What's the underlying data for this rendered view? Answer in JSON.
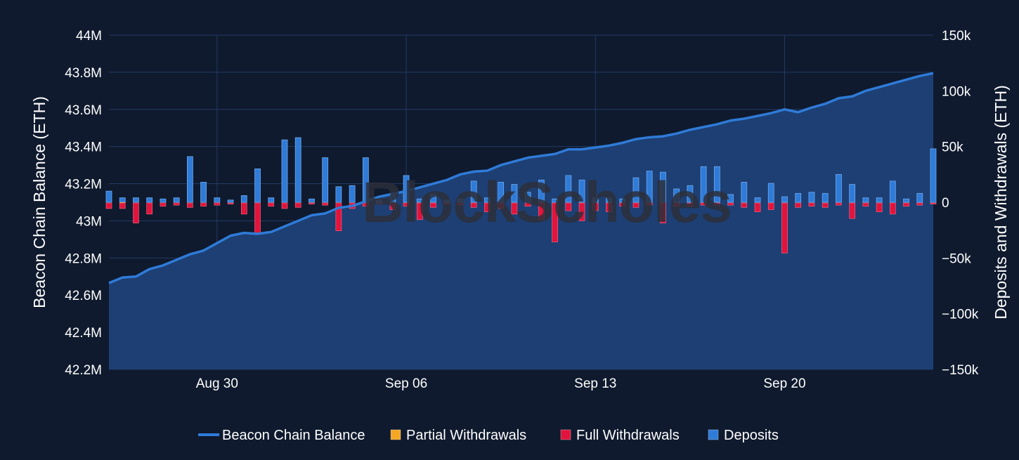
{
  "chart_data": {
    "type": "bar+area",
    "watermark": "BlockScholes",
    "x_tick_labels": [
      "Aug 30",
      "Sep 06",
      "Sep 13",
      "Sep 20"
    ],
    "x_tick_indices": [
      4,
      11,
      18,
      25
    ],
    "y_left": {
      "label": "Beacon Chain Balance (ETH)",
      "range": [
        42200000,
        44000000
      ],
      "ticks": [
        42200000,
        42400000,
        42600000,
        42800000,
        43000000,
        43200000,
        43400000,
        43600000,
        43800000,
        44000000
      ],
      "tick_labels": [
        "42.2M",
        "42.4M",
        "42.6M",
        "42.8M",
        "43M",
        "43.2M",
        "43.4M",
        "43.6M",
        "43.8M",
        "44M"
      ]
    },
    "y_right": {
      "label": "Deposits and Withdrawals (ETH)",
      "range": [
        -150000,
        150000
      ],
      "ticks": [
        -150000,
        -100000,
        -50000,
        0,
        50000,
        100000,
        150000
      ],
      "tick_labels": [
        "−150k",
        "−100k",
        "−50k",
        "0",
        "50k",
        "100k",
        "150k"
      ]
    },
    "legend": [
      {
        "name": "Beacon Chain Balance",
        "color": "#2f7bd8",
        "kind": "line"
      },
      {
        "name": "Partial Withdrawals",
        "color": "#f5a623",
        "kind": "box"
      },
      {
        "name": "Full Withdrawals",
        "color": "#e0143c",
        "kind": "box"
      },
      {
        "name": "Deposits",
        "color": "#2f7bd8",
        "kind": "box"
      }
    ],
    "colors": {
      "background": "#0f1a2e",
      "area_fill": "#1d3f73",
      "line": "#2f7bd8",
      "deposits": "#2f7bd8",
      "full_withdrawals": "#e0143c",
      "partial_withdrawals": "#f5a623",
      "grid": "#233a63"
    },
    "balance": [
      [
        0,
        42665000
      ],
      [
        0.5,
        42695000
      ],
      [
        1,
        42700000
      ],
      [
        1.5,
        42740000
      ],
      [
        2,
        42760000
      ],
      [
        2.5,
        42790000
      ],
      [
        3,
        42820000
      ],
      [
        3.5,
        42840000
      ],
      [
        4,
        42880000
      ],
      [
        4.5,
        42920000
      ],
      [
        5,
        42935000
      ],
      [
        5.5,
        42930000
      ],
      [
        6,
        42940000
      ],
      [
        6.5,
        42970000
      ],
      [
        7,
        43000000
      ],
      [
        7.5,
        43030000
      ],
      [
        8,
        43040000
      ],
      [
        8.5,
        43070000
      ],
      [
        9,
        43080000
      ],
      [
        9.5,
        43105000
      ],
      [
        10,
        43130000
      ],
      [
        10.5,
        43145000
      ],
      [
        11,
        43160000
      ],
      [
        11.5,
        43180000
      ],
      [
        12,
        43200000
      ],
      [
        12.5,
        43220000
      ],
      [
        13,
        43250000
      ],
      [
        13.5,
        43265000
      ],
      [
        14,
        43270000
      ],
      [
        14.5,
        43300000
      ],
      [
        15,
        43320000
      ],
      [
        15.5,
        43340000
      ],
      [
        16,
        43350000
      ],
      [
        16.5,
        43360000
      ],
      [
        17,
        43385000
      ],
      [
        17.5,
        43385000
      ],
      [
        18,
        43395000
      ],
      [
        18.5,
        43405000
      ],
      [
        19,
        43420000
      ],
      [
        19.5,
        43440000
      ],
      [
        20,
        43450000
      ],
      [
        20.5,
        43455000
      ],
      [
        21,
        43470000
      ],
      [
        21.5,
        43490000
      ],
      [
        22,
        43505000
      ],
      [
        22.5,
        43520000
      ],
      [
        23,
        43540000
      ],
      [
        23.5,
        43550000
      ],
      [
        24,
        43565000
      ],
      [
        24.5,
        43580000
      ],
      [
        25,
        43600000
      ],
      [
        25.5,
        43585000
      ],
      [
        26,
        43610000
      ],
      [
        26.5,
        43630000
      ],
      [
        27,
        43660000
      ],
      [
        27.5,
        43670000
      ],
      [
        28,
        43700000
      ],
      [
        28.5,
        43720000
      ],
      [
        29,
        43740000
      ],
      [
        29.5,
        43760000
      ],
      [
        30,
        43780000
      ],
      [
        30.5,
        43795000
      ]
    ],
    "bars": [
      [
        0,
        10000,
        0,
        -5000
      ],
      [
        0.5,
        4000,
        -500,
        -5000
      ],
      [
        1,
        4000,
        0,
        -18000
      ],
      [
        1.5,
        4000,
        0,
        -10000
      ],
      [
        2,
        3000,
        0,
        -3000
      ],
      [
        2.5,
        4000,
        0,
        -2000
      ],
      [
        3,
        41000,
        0,
        -4000
      ],
      [
        3.5,
        18000,
        0,
        -3000
      ],
      [
        4,
        4000,
        0,
        -2000
      ],
      [
        4.5,
        2000,
        0,
        -1000
      ],
      [
        5,
        6000,
        0,
        -10000
      ],
      [
        5.5,
        30000,
        0,
        -28000
      ],
      [
        6,
        4000,
        0,
        -3000
      ],
      [
        6.5,
        56000,
        0,
        -5000
      ],
      [
        7,
        58000,
        0,
        -4000
      ],
      [
        7.5,
        3000,
        0,
        -1000
      ],
      [
        8,
        40000,
        0,
        -2000
      ],
      [
        8.5,
        14000,
        0,
        -25000
      ],
      [
        9,
        15000,
        0,
        -5000
      ],
      [
        9.5,
        40000,
        0,
        -3000
      ],
      [
        10,
        2000,
        0,
        -1000
      ],
      [
        10.5,
        8000,
        0,
        -6000
      ],
      [
        11,
        24000,
        0,
        -3000
      ],
      [
        11.5,
        3000,
        0,
        -15000
      ],
      [
        12,
        7000,
        0,
        -4000
      ],
      [
        12.5,
        2000,
        0,
        -1000
      ],
      [
        13,
        3000,
        0,
        -2000
      ],
      [
        13.5,
        19000,
        0,
        -4000
      ],
      [
        14,
        4000,
        0,
        -8000
      ],
      [
        14.5,
        18000,
        0,
        -5000
      ],
      [
        15,
        16000,
        0,
        -10000
      ],
      [
        15.5,
        9000,
        0,
        -3000
      ],
      [
        16,
        20000,
        0,
        -15000
      ],
      [
        16.5,
        3000,
        0,
        -35000
      ],
      [
        17,
        24000,
        0,
        -7000
      ],
      [
        17.5,
        20000,
        0,
        -16000
      ],
      [
        18,
        4000,
        0,
        -7000
      ],
      [
        18.5,
        4000,
        0,
        -8000
      ],
      [
        19,
        3000,
        0,
        -3000
      ],
      [
        19.5,
        22000,
        0,
        -4000
      ],
      [
        20,
        28000,
        0,
        -2000
      ],
      [
        20.5,
        27000,
        0,
        -18000
      ],
      [
        21,
        12000,
        0,
        -3000
      ],
      [
        21.5,
        15000,
        0,
        -3000
      ],
      [
        22,
        32000,
        0,
        -2000
      ],
      [
        22.5,
        32000,
        0,
        -2000
      ],
      [
        23,
        7000,
        0,
        -2000
      ],
      [
        23.5,
        18000,
        0,
        -4000
      ],
      [
        24,
        4000,
        0,
        -8000
      ],
      [
        24.5,
        17000,
        0,
        -6000
      ],
      [
        25,
        5000,
        0,
        -45000
      ],
      [
        25.5,
        8000,
        0,
        -4000
      ],
      [
        26,
        9000,
        0,
        -3000
      ],
      [
        26.5,
        8000,
        0,
        -4000
      ],
      [
        27,
        25000,
        0,
        -2000
      ],
      [
        27.5,
        16000,
        0,
        -14000
      ],
      [
        28,
        4000,
        0,
        -3000
      ],
      [
        28.5,
        4000,
        0,
        -8000
      ],
      [
        29,
        19000,
        0,
        -10000
      ],
      [
        29.5,
        3000,
        0,
        -3000
      ],
      [
        30,
        8000,
        0,
        -2000
      ],
      [
        30.5,
        48000,
        0,
        -1000
      ]
    ]
  }
}
